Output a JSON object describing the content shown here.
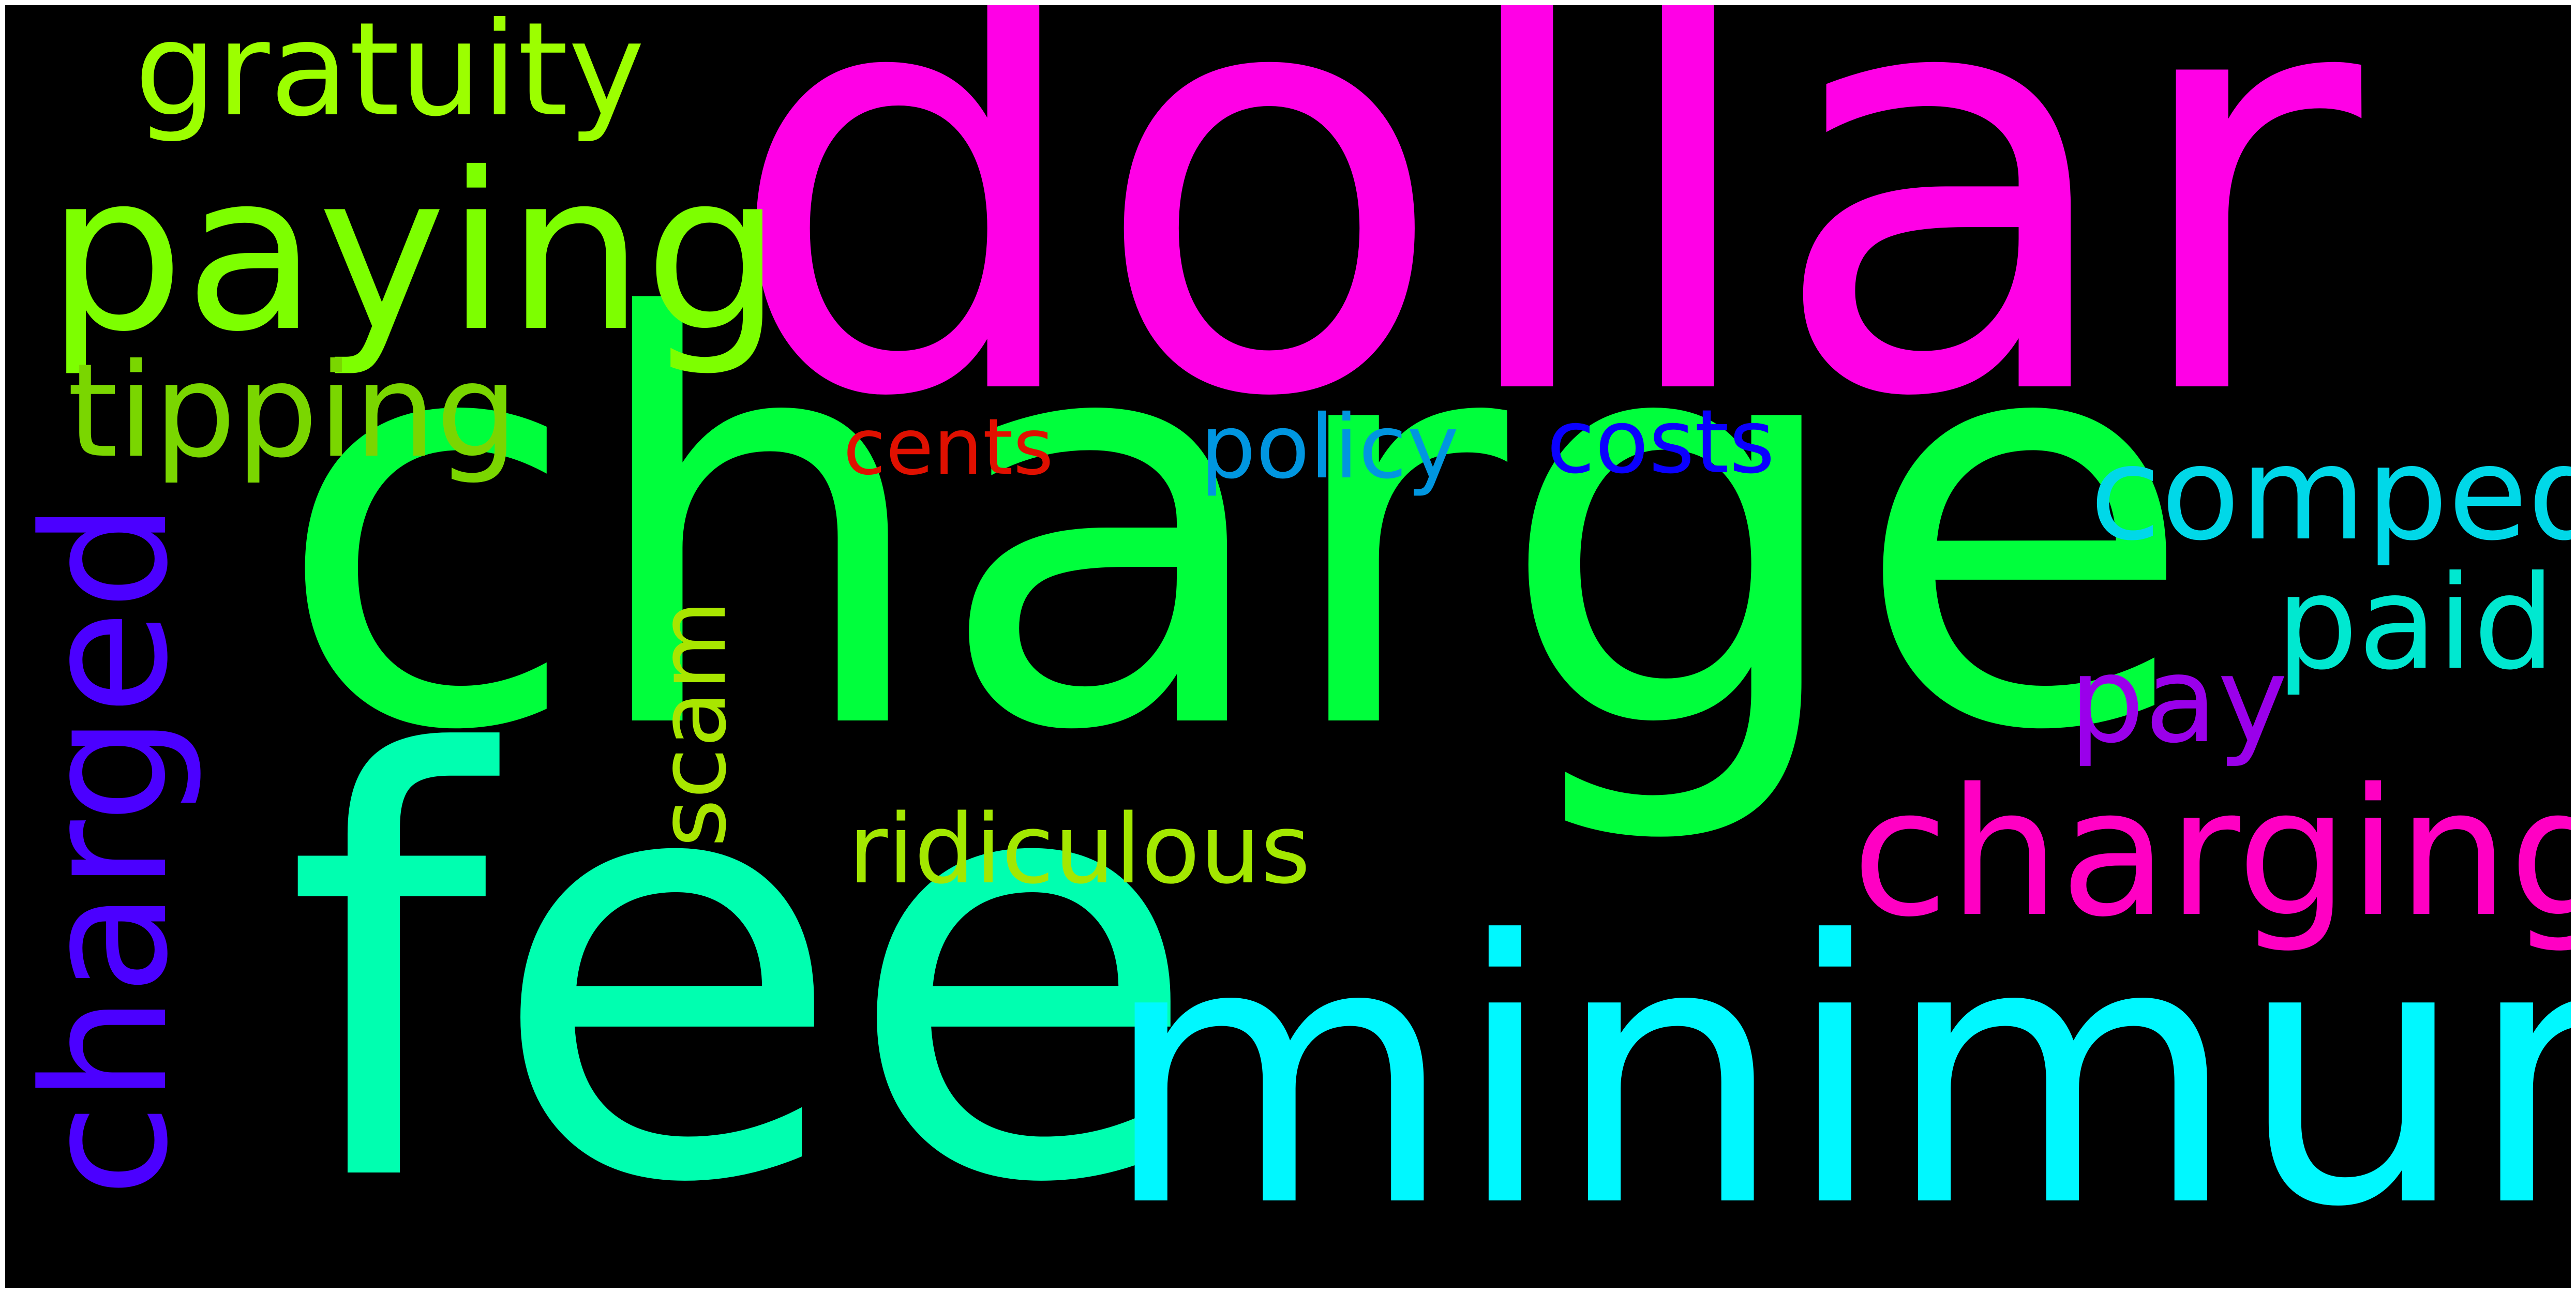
{
  "wordcloud": {
    "background": "#000000",
    "words": [
      {
        "text": "dollar",
        "color": "#ff00e6"
      },
      {
        "text": "charge",
        "color": "#00ff3c"
      },
      {
        "text": "fee",
        "color": "#00ffb0"
      },
      {
        "text": "minimum",
        "color": "#00f8ff"
      },
      {
        "text": "paying",
        "color": "#7dff00"
      },
      {
        "text": "charged",
        "color": "#4b00ff"
      },
      {
        "text": "charging",
        "color": "#ff00c3"
      },
      {
        "text": "gratuity",
        "color": "#9cff00"
      },
      {
        "text": "tipping",
        "color": "#7ad600"
      },
      {
        "text": "comped",
        "color": "#00d8e8"
      },
      {
        "text": "paid",
        "color": "#00e8d0"
      },
      {
        "text": "costs",
        "color": "#0a00ff"
      },
      {
        "text": "policy",
        "color": "#0096e0"
      },
      {
        "text": "cents",
        "color": "#e01000"
      },
      {
        "text": "pay",
        "color": "#9a00ea"
      },
      {
        "text": "scam",
        "color": "#a8e600"
      },
      {
        "text": "ridiculous",
        "color": "#a3e800"
      }
    ]
  }
}
